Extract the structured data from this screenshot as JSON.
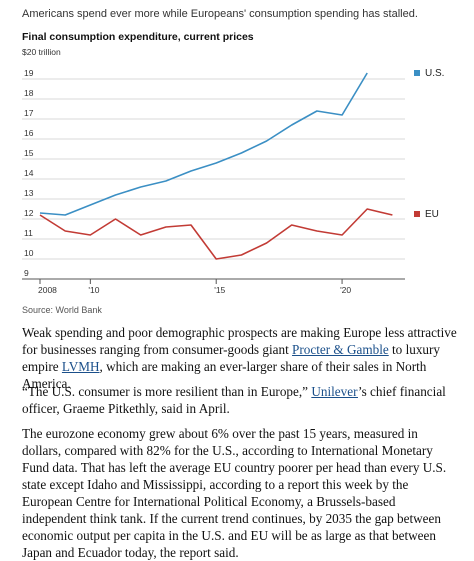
{
  "header": {
    "caption": "Americans spend ever more while Europeans' consumption spending has stalled.",
    "source": "Source: World Bank"
  },
  "chart_data": {
    "type": "line",
    "title": "Final consumption expenditure, current prices",
    "ylabel_unit": "$20 trillion",
    "ylim": [
      9,
      20
    ],
    "yticks": [
      9,
      10,
      11,
      12,
      13,
      14,
      15,
      16,
      17,
      18,
      19
    ],
    "xlim": [
      2008,
      2022.5
    ],
    "xticks": [
      {
        "value": 2008,
        "label": "2008"
      },
      {
        "value": 2010,
        "label": "'10"
      },
      {
        "value": 2015,
        "label": "'15"
      },
      {
        "value": 2020,
        "label": "'20"
      }
    ],
    "x": [
      2008,
      2009,
      2010,
      2011,
      2012,
      2013,
      2014,
      2015,
      2016,
      2017,
      2018,
      2019,
      2020,
      2021,
      2022
    ],
    "series": [
      {
        "name": "U.S.",
        "color": "#3b8fc4",
        "values": [
          12.3,
          12.2,
          12.7,
          13.2,
          13.6,
          13.9,
          14.4,
          14.8,
          15.3,
          15.9,
          16.7,
          17.4,
          17.2,
          19.3,
          null
        ]
      },
      {
        "name": "EU",
        "color": "#c23b35",
        "values": [
          12.2,
          11.4,
          11.2,
          12.0,
          11.2,
          11.6,
          11.7,
          10.0,
          10.2,
          10.8,
          11.7,
          11.4,
          11.2,
          12.5,
          12.2
        ]
      }
    ],
    "grid": "horizontal",
    "legend": "right, at line ends"
  },
  "article": {
    "p1_a": "Weak spending and poor demographic prospects are making Europe less attractive for businesses ranging from consumer-goods giant ",
    "p1_link1": "Procter & Gamble",
    "p1_b": " to luxury empire ",
    "p1_link2": "LVMH",
    "p1_c": ", which are making an ever-larger share of their sales in North America.",
    "p2_a": "“The U.S. consumer is more resilient than in Europe,” ",
    "p2_link": "Unilever",
    "p2_b": "’s chief financial officer, Graeme Pitkethly, said in April.",
    "p3": "The eurozone economy grew about 6% over the past 15 years, measured in dollars, compared with 82% for the U.S., according to International Monetary Fund data. That has left the average EU country poorer per head than every U.S. state except Idaho and Mississippi, according to a report this week by the European Centre for International Political Economy, a Brussels-based independent think tank. If the current trend continues, by 2035 the gap between economic output per capita in the U.S. and EU will be as large as that between Japan and Ecuador today, the report said."
  }
}
